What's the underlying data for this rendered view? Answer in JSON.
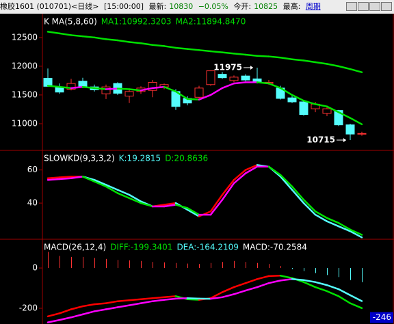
{
  "header": {
    "symbol": "橡胶1601 (010701)<日线>",
    "time": "[15:00:00]",
    "last_label": "最新:",
    "last": "10830",
    "change": "−0.05%",
    "open_label": "今开:",
    "open": "10825",
    "high_label": "最高:",
    "period": "周期"
  },
  "chart_data": [
    {
      "type": "candlestick",
      "title": "K  MA(5,8,60)",
      "open": [
        11790,
        11640,
        11600,
        11740,
        11640,
        11520,
        11700,
        11480,
        11560,
        11580,
        11640,
        11560,
        11440,
        11460,
        11680,
        11860,
        11750,
        11830,
        11780,
        11700,
        11620,
        11450,
        11380,
        11260,
        11180,
        11230,
        10980,
        10825
      ],
      "high": [
        11960,
        11700,
        11780,
        11800,
        11680,
        11680,
        11720,
        11600,
        11650,
        11760,
        11700,
        11600,
        11480,
        11660,
        11900,
        11900,
        11840,
        11860,
        11975,
        11760,
        11660,
        11500,
        11400,
        11380,
        11300,
        11240,
        11000,
        10860
      ],
      "low": [
        11640,
        11520,
        11580,
        11620,
        11560,
        11430,
        11500,
        11360,
        11520,
        11460,
        11600,
        11240,
        11320,
        11440,
        11660,
        11780,
        11720,
        11740,
        11700,
        11680,
        11420,
        11360,
        11140,
        11200,
        11130,
        10960,
        10715,
        10790
      ],
      "close": [
        11650,
        11550,
        11700,
        11640,
        11590,
        11640,
        11530,
        11560,
        11620,
        11720,
        11680,
        11300,
        11360,
        11620,
        11920,
        11800,
        11810,
        11760,
        11730,
        11720,
        11440,
        11380,
        11160,
        11340,
        11260,
        10980,
        10820,
        10830
      ],
      "up_color": "#ff3232",
      "down_color": "#54fcfc",
      "series": [
        {
          "name": "MA1:10992.3203",
          "color": "#00e000",
          "up_color": "#ff00ff",
          "values": [
            11660,
            11640,
            11620,
            11640,
            11620,
            11600,
            11610,
            11600,
            11580,
            11620,
            11640,
            11560,
            11430,
            11420,
            11500,
            11620,
            11700,
            11720,
            11720,
            11700,
            11620,
            11500,
            11400,
            11340,
            11300,
            11200,
            11100,
            10990
          ]
        },
        {
          "name": "MA2:11894.8470",
          "color": "#00e000",
          "values": [
            12600,
            12570,
            12540,
            12520,
            12500,
            12470,
            12450,
            12420,
            12400,
            12370,
            12350,
            12320,
            12300,
            12280,
            12260,
            12240,
            12220,
            12200,
            12180,
            12170,
            12150,
            12120,
            12100,
            12070,
            12040,
            12000,
            11950,
            11895
          ]
        }
      ],
      "high_mark": 11975,
      "low_mark": 10715,
      "ylim": [
        10560,
        12890
      ],
      "yticks": [
        11000,
        11500,
        12000,
        12500
      ]
    },
    {
      "type": "line",
      "title": "SLOWKD(9,3,3,2)",
      "series": [
        {
          "name": "K:19.2815",
          "color": "#54fcfc",
          "up_color": "#ff0000",
          "values": [
            55,
            55.5,
            56,
            56,
            54,
            51,
            48,
            45,
            41,
            38,
            39,
            40,
            36,
            32,
            35,
            45,
            54,
            60,
            63,
            62,
            56,
            48,
            40,
            33,
            29,
            26,
            23,
            19.28
          ]
        },
        {
          "name": "D:20.8636",
          "color": "#00e000",
          "up_color": "#ff00ff",
          "values": [
            54,
            54.5,
            55,
            56,
            53,
            50,
            46,
            43,
            40,
            38,
            38,
            39,
            37,
            33,
            33,
            42,
            52,
            58,
            62,
            62,
            57,
            50,
            42,
            35,
            31,
            28,
            24,
            20.86
          ]
        }
      ],
      "ylim": [
        19,
        71
      ],
      "yticks": [
        40,
        60
      ]
    },
    {
      "type": "bar",
      "title": "MACD(26,12,4)",
      "name": "MACD:-70.2584",
      "values": [
        80,
        60,
        55,
        55,
        50,
        45,
        40,
        38,
        35,
        30,
        28,
        25,
        22,
        20,
        25,
        30,
        35,
        30,
        25,
        20,
        10,
        -5,
        -15,
        -25,
        -35,
        -45,
        -60,
        -70.26
      ],
      "pos_color": "#ff3232",
      "neg_color": "#54fcfc",
      "series": [
        {
          "name": "DIFF:-199.3401",
          "color": "#00e000",
          "up_color": "#ff0000",
          "values": [
            -240,
            -225,
            -205,
            -190,
            -180,
            -175,
            -165,
            -160,
            -155,
            -150,
            -145,
            -140,
            -155,
            -158,
            -150,
            -120,
            -95,
            -75,
            -55,
            -40,
            -38,
            -50,
            -70,
            -95,
            -115,
            -140,
            -175,
            -199.34
          ]
        },
        {
          "name": "DEA:-164.2109",
          "color": "#54fcfc",
          "up_color": "#ff00ff",
          "values": [
            -270,
            -258,
            -245,
            -230,
            -215,
            -205,
            -195,
            -185,
            -175,
            -165,
            -158,
            -152,
            -150,
            -152,
            -153,
            -145,
            -130,
            -112,
            -95,
            -75,
            -62,
            -55,
            -60,
            -70,
            -85,
            -105,
            -135,
            -164.21
          ]
        }
      ],
      "marker": -246,
      "ylim": [
        -278,
        136
      ],
      "yticks": [
        -200,
        0
      ]
    }
  ]
}
